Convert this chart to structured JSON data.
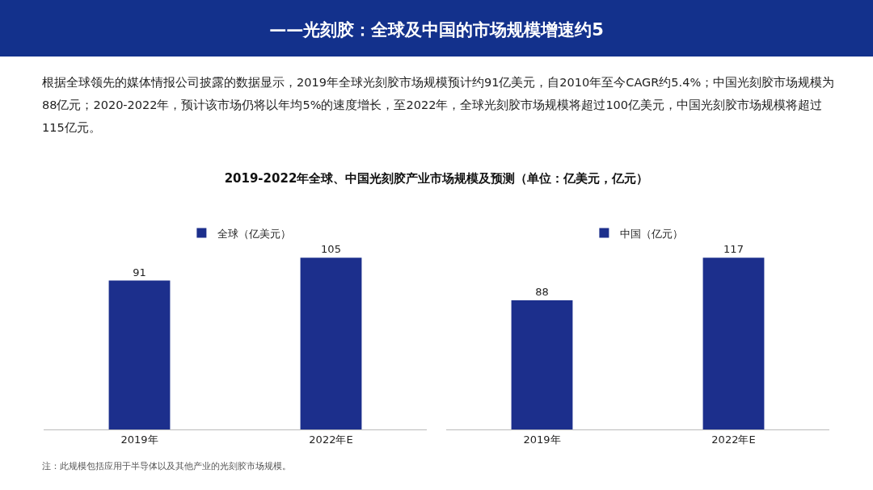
{
  "chart_data": [
    {
      "type": "bar",
      "title": "——光刻胶：全球及中国的市场规模增速约5",
      "subtitle": "根据全球领先的媒体情报公司披露的数据显示，2019年全球光刻胶市场规模预计约91亿美元，自2010年至今CAGR约5.4%；中国光刻胶市场规模为88亿元；2020-2022年，预计该市场仍将以年均5%的速度增长，至2022年，全球光刻胶市场规模将超过100亿美元，中国光刻胶市场规模将超过115亿元。",
      "annotations": [
        "2019-2022年全球、中国光刻胶产业市场规模及预测（单位：亿美元，亿元）",
        "注：此规模包括应用于半导体以及其他产业的光刻胶市场规模。"
      ],
      "categories": [
        "2019年",
        "2022年E"
      ],
      "series": [
        {
          "name": "全球（亿美元）",
          "color": "#1c2f8c",
          "values": [
            91,
            105
          ]
        }
      ],
      "data_labels": true,
      "legend": "top left",
      "tick_labels": "x"
    },
    {
      "type": "bar",
      "categories": [
        "2019年",
        "2022年E"
      ],
      "series": [
        {
          "name": "中国（亿元）",
          "color": "#1c2f8c",
          "values": [
            88,
            117
          ]
        }
      ],
      "data_labels": true,
      "legend": "top left",
      "tick_labels": "x"
    }
  ]
}
